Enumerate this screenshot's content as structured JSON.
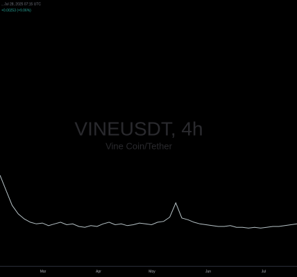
{
  "header": {
    "timestamp": "., Jul 28, 2025 07:15 UTC",
    "change": "+0.00253 (+9.06%)"
  },
  "chart_data": {
    "type": "line",
    "title": "VINEUSDT, 4h",
    "subtitle": "Vine Coin/Tether",
    "color": "#b8c4c8",
    "values": [
      0.108,
      0.09,
      0.072,
      0.062,
      0.056,
      0.052,
      0.05,
      0.051,
      0.048,
      0.05,
      0.052,
      0.049,
      0.05,
      0.047,
      0.046,
      0.048,
      0.047,
      0.05,
      0.052,
      0.049,
      0.05,
      0.048,
      0.049,
      0.051,
      0.05,
      0.049,
      0.052,
      0.053,
      0.058,
      0.075,
      0.057,
      0.055,
      0.052,
      0.05,
      0.049,
      0.048,
      0.047,
      0.047,
      0.048,
      0.046,
      0.046,
      0.045,
      0.046,
      0.045,
      0.046,
      0.047,
      0.047,
      0.048,
      0.049,
      0.05
    ],
    "ylim": [
      0,
      0.3
    ],
    "x_labels": [
      "Mar",
      "Apr",
      "May",
      "Jun",
      "Jul"
    ]
  }
}
